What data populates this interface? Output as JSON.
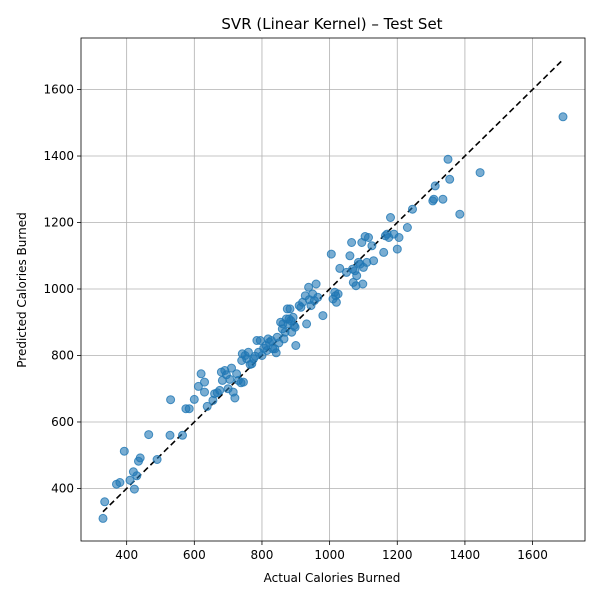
{
  "chart_data": {
    "type": "scatter",
    "title": "SVR (Linear Kernel) – Test Set",
    "xlabel": "Actual Calories Burned",
    "ylabel": "Predicted Calories Burned",
    "xlim": [
      265,
      1755
    ],
    "ylim": [
      242,
      1755
    ],
    "xticks": [
      400,
      600,
      800,
      1000,
      1200,
      1400,
      1600
    ],
    "yticks": [
      400,
      600,
      800,
      1000,
      1200,
      1400,
      1600
    ],
    "grid": true,
    "reference_line": {
      "style": "dashed",
      "color": "#000000",
      "x": [
        330,
        1690
      ],
      "y": [
        330,
        1690
      ]
    },
    "point_color": "#1f77b4",
    "point_alpha": 0.6,
    "points": [
      [
        330,
        310
      ],
      [
        335,
        360
      ],
      [
        370,
        413
      ],
      [
        380,
        418
      ],
      [
        393,
        512
      ],
      [
        410,
        425
      ],
      [
        420,
        450
      ],
      [
        423,
        398
      ],
      [
        430,
        438
      ],
      [
        435,
        482
      ],
      [
        440,
        492
      ],
      [
        465,
        562
      ],
      [
        490,
        487
      ],
      [
        528,
        560
      ],
      [
        530,
        667
      ],
      [
        565,
        560
      ],
      [
        575,
        640
      ],
      [
        585,
        640
      ],
      [
        600,
        668
      ],
      [
        612,
        707
      ],
      [
        620,
        745
      ],
      [
        630,
        690
      ],
      [
        630,
        720
      ],
      [
        638,
        647
      ],
      [
        655,
        665
      ],
      [
        660,
        685
      ],
      [
        668,
        688
      ],
      [
        675,
        695
      ],
      [
        680,
        750
      ],
      [
        683,
        725
      ],
      [
        690,
        755
      ],
      [
        695,
        742
      ],
      [
        700,
        700
      ],
      [
        705,
        728
      ],
      [
        710,
        762
      ],
      [
        715,
        690
      ],
      [
        720,
        672
      ],
      [
        725,
        745
      ],
      [
        730,
        725
      ],
      [
        738,
        718
      ],
      [
        740,
        785
      ],
      [
        742,
        805
      ],
      [
        745,
        720
      ],
      [
        750,
        800
      ],
      [
        755,
        790
      ],
      [
        760,
        810
      ],
      [
        765,
        773
      ],
      [
        770,
        775
      ],
      [
        775,
        790
      ],
      [
        780,
        798
      ],
      [
        785,
        845
      ],
      [
        790,
        810
      ],
      [
        795,
        845
      ],
      [
        800,
        800
      ],
      [
        805,
        822
      ],
      [
        812,
        830
      ],
      [
        815,
        815
      ],
      [
        818,
        850
      ],
      [
        822,
        840
      ],
      [
        828,
        845
      ],
      [
        832,
        820
      ],
      [
        838,
        820
      ],
      [
        842,
        808
      ],
      [
        845,
        855
      ],
      [
        850,
        838
      ],
      [
        855,
        900
      ],
      [
        860,
        880
      ],
      [
        862,
        895
      ],
      [
        865,
        850
      ],
      [
        868,
        870
      ],
      [
        872,
        910
      ],
      [
        875,
        940
      ],
      [
        878,
        895
      ],
      [
        880,
        910
      ],
      [
        883,
        940
      ],
      [
        885,
        905
      ],
      [
        888,
        870
      ],
      [
        892,
        915
      ],
      [
        895,
        890
      ],
      [
        898,
        885
      ],
      [
        900,
        830
      ],
      [
        910,
        950
      ],
      [
        915,
        945
      ],
      [
        920,
        960
      ],
      [
        928,
        980
      ],
      [
        932,
        895
      ],
      [
        938,
        1005
      ],
      [
        940,
        968
      ],
      [
        945,
        950
      ],
      [
        950,
        985
      ],
      [
        955,
        965
      ],
      [
        960,
        1015
      ],
      [
        965,
        975
      ],
      [
        980,
        920
      ],
      [
        1005,
        1105
      ],
      [
        1010,
        970
      ],
      [
        1015,
        990
      ],
      [
        1018,
        980
      ],
      [
        1020,
        960
      ],
      [
        1025,
        985
      ],
      [
        1030,
        1062
      ],
      [
        1050,
        1050
      ],
      [
        1060,
        1100
      ],
      [
        1065,
        1140
      ],
      [
        1068,
        1060
      ],
      [
        1070,
        1020
      ],
      [
        1075,
        1055
      ],
      [
        1078,
        1010
      ],
      [
        1080,
        1040
      ],
      [
        1085,
        1080
      ],
      [
        1090,
        1075
      ],
      [
        1095,
        1140
      ],
      [
        1098,
        1015
      ],
      [
        1100,
        1065
      ],
      [
        1105,
        1158
      ],
      [
        1110,
        1080
      ],
      [
        1115,
        1155
      ],
      [
        1125,
        1130
      ],
      [
        1130,
        1085
      ],
      [
        1160,
        1110
      ],
      [
        1165,
        1160
      ],
      [
        1170,
        1165
      ],
      [
        1175,
        1155
      ],
      [
        1180,
        1215
      ],
      [
        1190,
        1165
      ],
      [
        1200,
        1120
      ],
      [
        1205,
        1155
      ],
      [
        1230,
        1185
      ],
      [
        1245,
        1240
      ],
      [
        1305,
        1265
      ],
      [
        1308,
        1270
      ],
      [
        1312,
        1310
      ],
      [
        1335,
        1270
      ],
      [
        1350,
        1390
      ],
      [
        1355,
        1330
      ],
      [
        1385,
        1225
      ],
      [
        1445,
        1350
      ],
      [
        1690,
        1518
      ]
    ]
  }
}
